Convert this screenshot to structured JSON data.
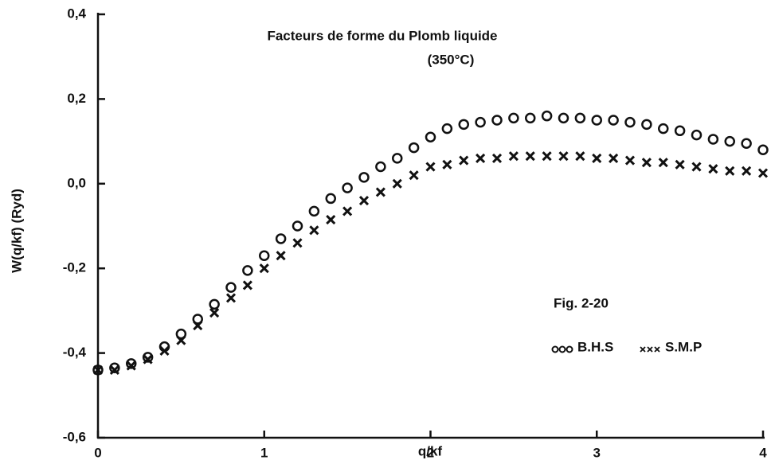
{
  "chart_data": {
    "type": "scatter",
    "title": "Facteurs de forme du Plomb liquide",
    "subtitle": "(350°C)",
    "annotation": "Fig. 2-20",
    "x_label": "q/kf",
    "y_label": "W(q/kf)  (Ryd)",
    "x": [
      0,
      0.1,
      0.2,
      0.3,
      0.4,
      0.5,
      0.6,
      0.7,
      0.8,
      0.9,
      1.0,
      1.1,
      1.2,
      1.3,
      1.4,
      1.5,
      1.6,
      1.7,
      1.8,
      1.9,
      2.0,
      2.1,
      2.2,
      2.3,
      2.4,
      2.5,
      2.6,
      2.7,
      2.8,
      2.9,
      3.0,
      3.1,
      3.2,
      3.3,
      3.4,
      3.5,
      3.6,
      3.7,
      3.8,
      3.9,
      4.0
    ],
    "series": [
      {
        "name": "B.H.S",
        "marker": "circle",
        "color": "#111111",
        "values": [
          -0.44,
          -0.435,
          -0.425,
          -0.41,
          -0.385,
          -0.355,
          -0.32,
          -0.285,
          -0.245,
          -0.205,
          -0.17,
          -0.13,
          -0.1,
          -0.065,
          -0.035,
          -0.01,
          0.015,
          0.04,
          0.06,
          0.085,
          0.11,
          0.13,
          0.14,
          0.145,
          0.15,
          0.155,
          0.155,
          0.16,
          0.155,
          0.155,
          0.15,
          0.15,
          0.145,
          0.14,
          0.13,
          0.125,
          0.115,
          0.105,
          0.1,
          0.095,
          0.08
        ]
      },
      {
        "name": "S.M.P",
        "marker": "cross",
        "color": "#111111",
        "values": [
          -0.44,
          -0.44,
          -0.43,
          -0.415,
          -0.395,
          -0.37,
          -0.335,
          -0.305,
          -0.27,
          -0.24,
          -0.2,
          -0.17,
          -0.14,
          -0.11,
          -0.085,
          -0.065,
          -0.04,
          -0.02,
          0.0,
          0.02,
          0.04,
          0.045,
          0.055,
          0.06,
          0.06,
          0.065,
          0.065,
          0.065,
          0.065,
          0.065,
          0.06,
          0.06,
          0.055,
          0.05,
          0.05,
          0.045,
          0.04,
          0.035,
          0.03,
          0.03,
          0.025
        ]
      }
    ],
    "xlim": [
      0,
      4
    ],
    "xticks": [
      0,
      1,
      2,
      3,
      4
    ],
    "ylim": [
      -0.6,
      0.4
    ],
    "yticks": [
      {
        "value": -0.6,
        "label": "-0,6"
      },
      {
        "value": -0.4,
        "label": "-0,4"
      },
      {
        "value": -0.2,
        "label": "-0,2"
      },
      {
        "value": 0.0,
        "label": "0,0"
      },
      {
        "value": 0.2,
        "label": "0,2"
      },
      {
        "value": 0.4,
        "label": "0,4"
      }
    ],
    "grid": false
  }
}
